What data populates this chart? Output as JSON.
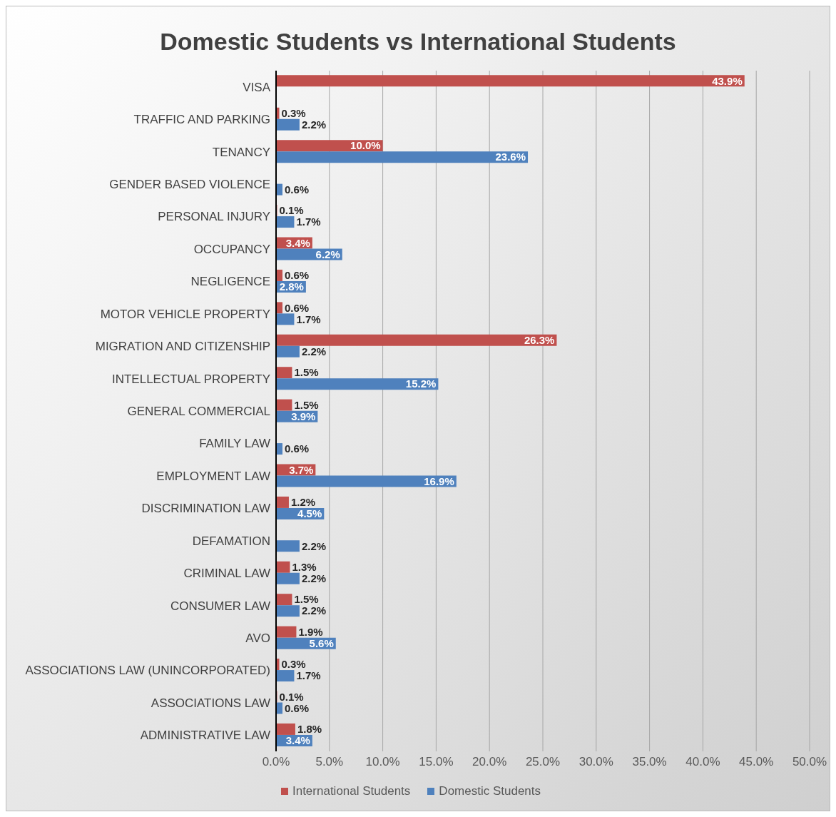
{
  "chart_data": {
    "type": "bar",
    "orientation": "horizontal",
    "title": "Domestic Students vs International Students",
    "categories": [
      "VISA",
      "TRAFFIC AND PARKING",
      "TENANCY",
      "GENDER BASED VIOLENCE",
      "PERSONAL INJURY",
      "OCCUPANCY",
      "NEGLIGENCE",
      "MOTOR VEHICLE PROPERTY",
      "MIGRATION AND CITIZENSHIP",
      "INTELLECTUAL PROPERTY",
      "GENERAL COMMERCIAL",
      "FAMILY LAW",
      "EMPLOYMENT LAW",
      "DISCRIMINATION LAW",
      "DEFAMATION",
      "CRIMINAL LAW",
      "CONSUMER LAW",
      "AVO",
      "ASSOCIATIONS LAW (UNINCORPORATED)",
      "ASSOCIATIONS LAW",
      "ADMINISTRATIVE LAW"
    ],
    "series": [
      {
        "name": "International Students",
        "color": "#c0504d",
        "values": [
          43.9,
          0.3,
          10.0,
          null,
          0.1,
          3.4,
          0.6,
          0.6,
          26.3,
          1.5,
          1.5,
          null,
          3.7,
          1.2,
          null,
          1.3,
          1.5,
          1.9,
          0.3,
          0.1,
          1.8
        ],
        "value_labels": [
          "43.9%",
          "0.3%",
          "10.0%",
          null,
          "0.1%",
          "3.4%",
          "0.6%",
          "0.6%",
          "26.3%",
          "1.5%",
          "1.5%",
          null,
          "3.7%",
          "1.2%",
          null,
          "1.3%",
          "1.5%",
          "1.9%",
          "0.3%",
          "0.1%",
          "1.8%"
        ]
      },
      {
        "name": "Domestic Students",
        "color": "#4f81bd",
        "values": [
          null,
          2.2,
          23.6,
          0.6,
          1.7,
          6.2,
          2.8,
          1.7,
          2.2,
          15.2,
          3.9,
          0.6,
          16.9,
          4.5,
          2.2,
          2.2,
          2.2,
          5.6,
          1.7,
          0.6,
          3.4
        ],
        "value_labels": [
          null,
          "2.2%",
          "23.6%",
          "0.6%",
          "1.7%",
          "6.2%",
          "2.8%",
          "1.7%",
          "2.2%",
          "15.2%",
          "3.9%",
          "0.6%",
          "16.9%",
          "4.5%",
          "2.2%",
          "2.2%",
          "2.2%",
          "5.6%",
          "1.7%",
          "0.6%",
          "3.4%"
        ]
      }
    ],
    "xlim": [
      0,
      50
    ],
    "xticks": [
      {
        "value": 0,
        "label": "0.0%"
      },
      {
        "value": 5,
        "label": "5.0%"
      },
      {
        "value": 10,
        "label": "10.0%"
      },
      {
        "value": 15,
        "label": "15.0%"
      },
      {
        "value": 20,
        "label": "20.0%"
      },
      {
        "value": 25,
        "label": "25.0%"
      },
      {
        "value": 30,
        "label": "30.0%"
      },
      {
        "value": 35,
        "label": "35.0%"
      },
      {
        "value": 40,
        "label": "40.0%"
      },
      {
        "value": 45,
        "label": "45.0%"
      },
      {
        "value": 50,
        "label": "50.0%"
      }
    ],
    "grid": "x",
    "legend": "bottom"
  }
}
